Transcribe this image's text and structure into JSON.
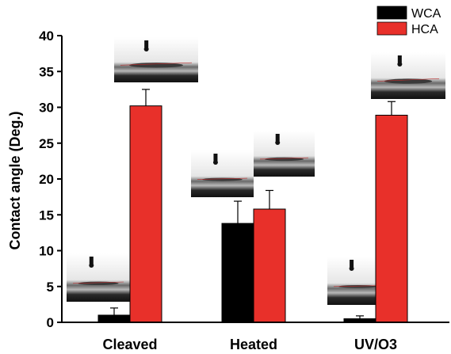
{
  "chart_data": {
    "type": "bar",
    "title": "",
    "xlabel": "",
    "ylabel": "Contact angle (Deg.)",
    "ylim": [
      0,
      40
    ],
    "yticks": [
      0,
      5,
      10,
      15,
      20,
      25,
      30,
      35,
      40
    ],
    "categories": [
      "Cleaved",
      "Heated",
      "UV/O3"
    ],
    "series": [
      {
        "name": "WCA",
        "color": "#000000",
        "values": [
          1.0,
          13.8,
          0.5
        ],
        "errors": [
          1.0,
          3.1,
          0.4
        ]
      },
      {
        "name": "HCA",
        "color": "#e8302a",
        "values": [
          30.2,
          15.8,
          28.9
        ],
        "errors": [
          2.3,
          2.6,
          1.9
        ]
      }
    ],
    "legend": "top-right",
    "grid": false
  }
}
